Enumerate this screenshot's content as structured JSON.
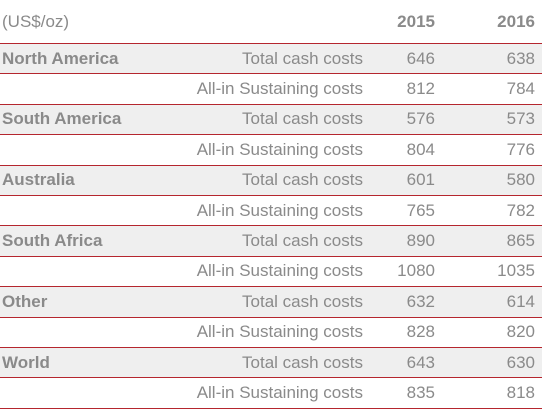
{
  "header": {
    "unit": "(US$/oz)",
    "year_2015": "2015",
    "year_2016": "2016"
  },
  "rows": [
    {
      "region": "North America",
      "metric": "Total cash costs",
      "v2015": "646",
      "v2016": "638"
    },
    {
      "region": "",
      "metric": "All-in Sustaining costs",
      "v2015": "812",
      "v2016": "784"
    },
    {
      "region": "South America",
      "metric": "Total cash costs",
      "v2015": "576",
      "v2016": "573"
    },
    {
      "region": "",
      "metric": "All-in Sustaining costs",
      "v2015": "804",
      "v2016": "776"
    },
    {
      "region": "Australia",
      "metric": "Total cash costs",
      "v2015": "601",
      "v2016": "580"
    },
    {
      "region": "",
      "metric": "All-in Sustaining costs",
      "v2015": "765",
      "v2016": "782"
    },
    {
      "region": "South Africa",
      "metric": "Total cash costs",
      "v2015": "890",
      "v2016": "865"
    },
    {
      "region": "",
      "metric": "All-in Sustaining costs",
      "v2015": "1080",
      "v2016": "1035"
    },
    {
      "region": "Other",
      "metric": "Total cash costs",
      "v2015": "632",
      "v2016": "614"
    },
    {
      "region": "",
      "metric": "All-in Sustaining costs",
      "v2015": "828",
      "v2016": "820"
    },
    {
      "region": "World",
      "metric": "Total cash costs",
      "v2015": "643",
      "v2016": "630"
    },
    {
      "region": "",
      "metric": "All-in Sustaining costs",
      "v2015": "835",
      "v2016": "818"
    }
  ],
  "colors": {
    "rule": "#b5262e",
    "text": "#8a8a8a",
    "shade": "#efefef"
  }
}
